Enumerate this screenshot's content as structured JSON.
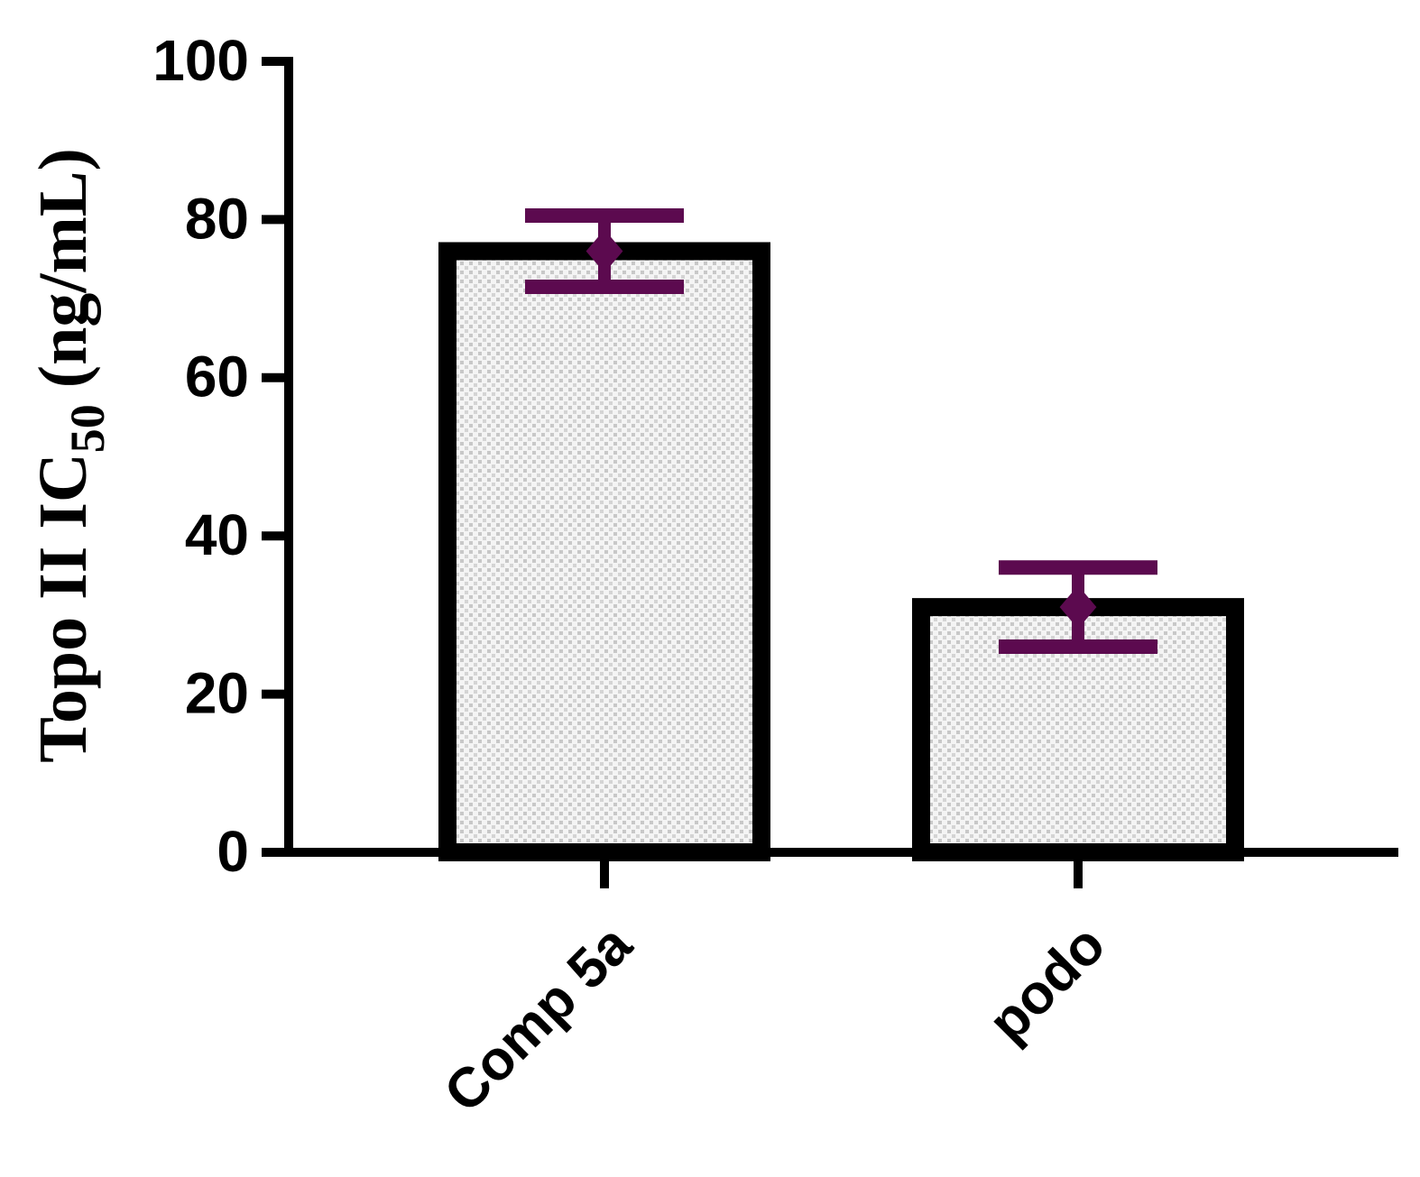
{
  "chart_data": {
    "type": "bar",
    "y_label": {
      "text": "Topo II IC",
      "subscript": "50",
      "suffix": "(ng/mL)"
    },
    "categories": [
      "Comp 5a",
      "podo"
    ],
    "values": [
      76,
      31
    ],
    "errors": [
      4.5,
      5
    ],
    "color": "#d9d9d9",
    "error_color": "#5c0a4f",
    "ylim": [
      0,
      100
    ],
    "yticks": [
      0,
      20,
      40,
      60,
      80,
      100
    ],
    "grid": false
  }
}
